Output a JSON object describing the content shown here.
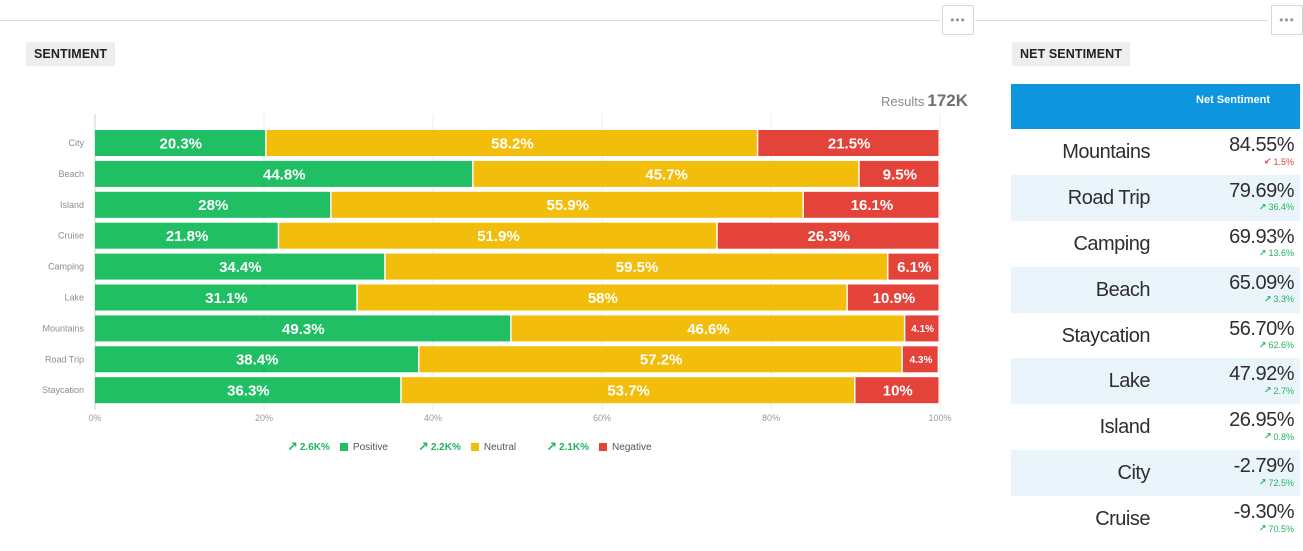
{
  "sentiment_panel": {
    "title": "SENTIMENT",
    "results_label": "Results",
    "results_value": "172K",
    "menu_icon": "ellipsis-icon"
  },
  "net_panel": {
    "title": "NET SENTIMENT",
    "column_header": "Net Sentiment",
    "menu_icon": "ellipsis-icon",
    "rows": [
      {
        "name": "Mountains",
        "value": "84.55%",
        "change": "1.5%",
        "direction": "down"
      },
      {
        "name": "Road Trip",
        "value": "79.69%",
        "change": "36.4%",
        "direction": "up"
      },
      {
        "name": "Camping",
        "value": "69.93%",
        "change": "13.6%",
        "direction": "up"
      },
      {
        "name": "Beach",
        "value": "65.09%",
        "change": "3.3%",
        "direction": "up"
      },
      {
        "name": "Staycation",
        "value": "56.70%",
        "change": "62.6%",
        "direction": "up"
      },
      {
        "name": "Lake",
        "value": "47.92%",
        "change": "2.7%",
        "direction": "up"
      },
      {
        "name": "Island",
        "value": "26.95%",
        "change": "0.8%",
        "direction": "up"
      },
      {
        "name": "City",
        "value": "-2.79%",
        "change": "72.5%",
        "direction": "up"
      },
      {
        "name": "Cruise",
        "value": "-9.30%",
        "change": "70.5%",
        "direction": "up"
      }
    ]
  },
  "legend": [
    {
      "change": "2.6K%",
      "label": "Positive",
      "color": "#21bf64"
    },
    {
      "change": "2.2K%",
      "label": "Neutral",
      "color": "#f2bd0b"
    },
    {
      "change": "2.1K%",
      "label": "Negative",
      "color": "#e4433a"
    }
  ],
  "colors": {
    "positive": "#21bf64",
    "neutral": "#f2bd0b",
    "negative": "#e4433a",
    "up": "#21b35f",
    "down": "#e2453b",
    "header": "#0d95de"
  },
  "chart_data": {
    "type": "bar",
    "orientation": "horizontal",
    "stacked": true,
    "percent_stacked": true,
    "categories": [
      "City",
      "Beach",
      "Island",
      "Cruise",
      "Camping",
      "Lake",
      "Mountains",
      "Road Trip",
      "Staycation"
    ],
    "series": [
      {
        "name": "Positive",
        "values": [
          20.3,
          44.8,
          28,
          21.8,
          34.4,
          31.1,
          49.3,
          38.4,
          36.3
        ]
      },
      {
        "name": "Neutral",
        "values": [
          58.2,
          45.7,
          55.9,
          51.9,
          59.5,
          58,
          46.6,
          57.2,
          53.7
        ]
      },
      {
        "name": "Negative",
        "values": [
          21.5,
          9.5,
          16.1,
          26.3,
          6.1,
          10.9,
          4.1,
          4.3,
          10
        ]
      }
    ],
    "value_labels": [
      [
        "20.3%",
        "58.2%",
        "21.5%"
      ],
      [
        "44.8%",
        "45.7%",
        "9.5%"
      ],
      [
        "28%",
        "55.9%",
        "16.1%"
      ],
      [
        "21.8%",
        "51.9%",
        "26.3%"
      ],
      [
        "34.4%",
        "59.5%",
        "6.1%"
      ],
      [
        "31.1%",
        "58%",
        "10.9%"
      ],
      [
        "49.3%",
        "46.6%",
        "4.1%"
      ],
      [
        "38.4%",
        "57.2%",
        "4.3%"
      ],
      [
        "36.3%",
        "53.7%",
        "10%"
      ]
    ],
    "xlim": [
      0,
      100
    ],
    "xticks": [
      "0%",
      "20%",
      "40%",
      "60%",
      "80%",
      "100%"
    ],
    "grid": true,
    "legend_position": "bottom"
  }
}
